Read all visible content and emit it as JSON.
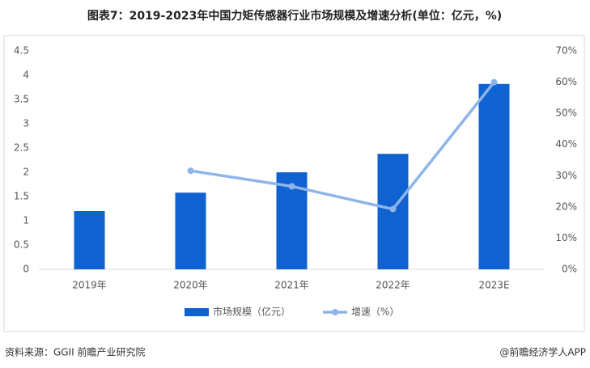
{
  "chart_data": {
    "type": "combo",
    "title": "图表7：2019-2023年中国力矩传感器行业市场规模及增速分析(单位：亿元，%)",
    "categories": [
      "2019年",
      "2020年",
      "2021年",
      "2022年",
      "2023E"
    ],
    "series": [
      {
        "name": "市场规模（亿元）",
        "type": "bar",
        "color": "#0f62d0",
        "values": [
          1.2,
          1.58,
          2.0,
          2.38,
          3.82
        ]
      },
      {
        "name": "增速（%）",
        "type": "line",
        "axis": "y2",
        "color": "#8db5ea",
        "values": [
          null,
          31.6,
          26.6,
          19.3,
          60
        ]
      }
    ],
    "ylim": [
      0,
      4.5
    ],
    "yticks": [
      0,
      0.5,
      1,
      1.5,
      2,
      2.5,
      3,
      3.5,
      4,
      4.5
    ],
    "y2lim": [
      0,
      70
    ],
    "y2ticks": [
      {
        "value": 0,
        "label": "0%"
      },
      {
        "value": 10,
        "label": "10%"
      },
      {
        "value": 20,
        "label": "20%"
      },
      {
        "value": 30,
        "label": "30%"
      },
      {
        "value": 40,
        "label": "40%"
      },
      {
        "value": 50,
        "label": "50%"
      },
      {
        "value": 60,
        "label": "60%"
      },
      {
        "value": 70,
        "label": "70%"
      }
    ],
    "legend": "bottom",
    "source": "资料来源：GGII 前瞻产业研究院",
    "credit": "@前瞻经济学人APP"
  }
}
